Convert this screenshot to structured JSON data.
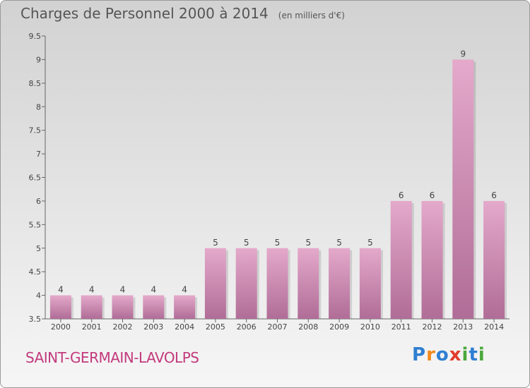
{
  "header": {
    "title": "Charges de Personnel 2000 à 2014",
    "subtitle": "(en milliers d'€)"
  },
  "footer": {
    "commune": "SAINT-GERMAIN-LAVOLPS",
    "logo": [
      "P",
      "r",
      "o",
      "x",
      "i",
      "t",
      "i"
    ]
  },
  "colors": {
    "bar_top": "#e4a9cb",
    "bar_bottom": "#b06d97",
    "commune_text": "#c23a7c",
    "logo": [
      "#2f7fd2",
      "#f08a1c",
      "#2f7fd2",
      "#e23c2c",
      "#4aa83c",
      "#2f7fd2",
      "#4aa83c"
    ]
  },
  "chart_data": {
    "type": "bar",
    "title": "Charges de Personnel 2000 à 2014",
    "subtitle": "(en milliers d'€)",
    "categories": [
      "2000",
      "2001",
      "2002",
      "2003",
      "2004",
      "2005",
      "2006",
      "2007",
      "2008",
      "2009",
      "2010",
      "2011",
      "2012",
      "2013",
      "2014"
    ],
    "values": [
      4,
      4,
      4,
      4,
      4,
      5,
      5,
      5,
      5,
      5,
      5,
      6,
      6,
      9,
      6
    ],
    "ylim": [
      3.5,
      9.5
    ],
    "yticks": [
      "3.5",
      "4",
      "4.5",
      "5",
      "5.5",
      "6",
      "6.5",
      "7",
      "7.5",
      "8",
      "8.5",
      "9",
      "9.5"
    ],
    "grid": false,
    "legend": "none"
  }
}
